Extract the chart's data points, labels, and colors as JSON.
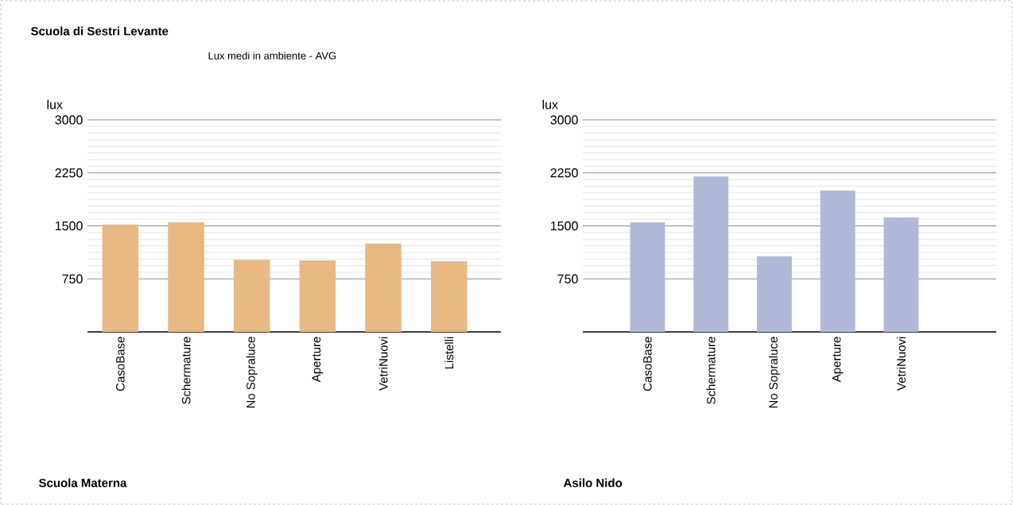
{
  "chart_data": [
    {
      "type": "bar",
      "title": "Scuola di Sestri Levante",
      "subtitle": "Lux medi in ambiente - AVG",
      "xlabel": "Scuola Materna",
      "ylabel": "lux",
      "categories": [
        "CasoBase",
        "Schermature",
        "No Sopraluce",
        "Aperture",
        "VetriNuovi",
        "Listelli"
      ],
      "values": [
        1520,
        1550,
        1020,
        1010,
        1250,
        1000
      ],
      "color": "#e8b982",
      "ylim": [
        0,
        3000
      ],
      "yticks": [
        750,
        1500,
        2250,
        3000
      ],
      "grid": "y"
    },
    {
      "type": "bar",
      "xlabel": "Asilo Nido",
      "ylabel": "lux",
      "categories": [
        "CasoBase",
        "Schermature",
        "No Sopraluce",
        "Aperture",
        "VetriNuovi"
      ],
      "values": [
        1550,
        2200,
        1070,
        2000,
        1620
      ],
      "color": "#b0b9d8",
      "ylim": [
        0,
        3000
      ],
      "yticks": [
        750,
        1500,
        2250,
        3000
      ],
      "grid": "y"
    }
  ]
}
